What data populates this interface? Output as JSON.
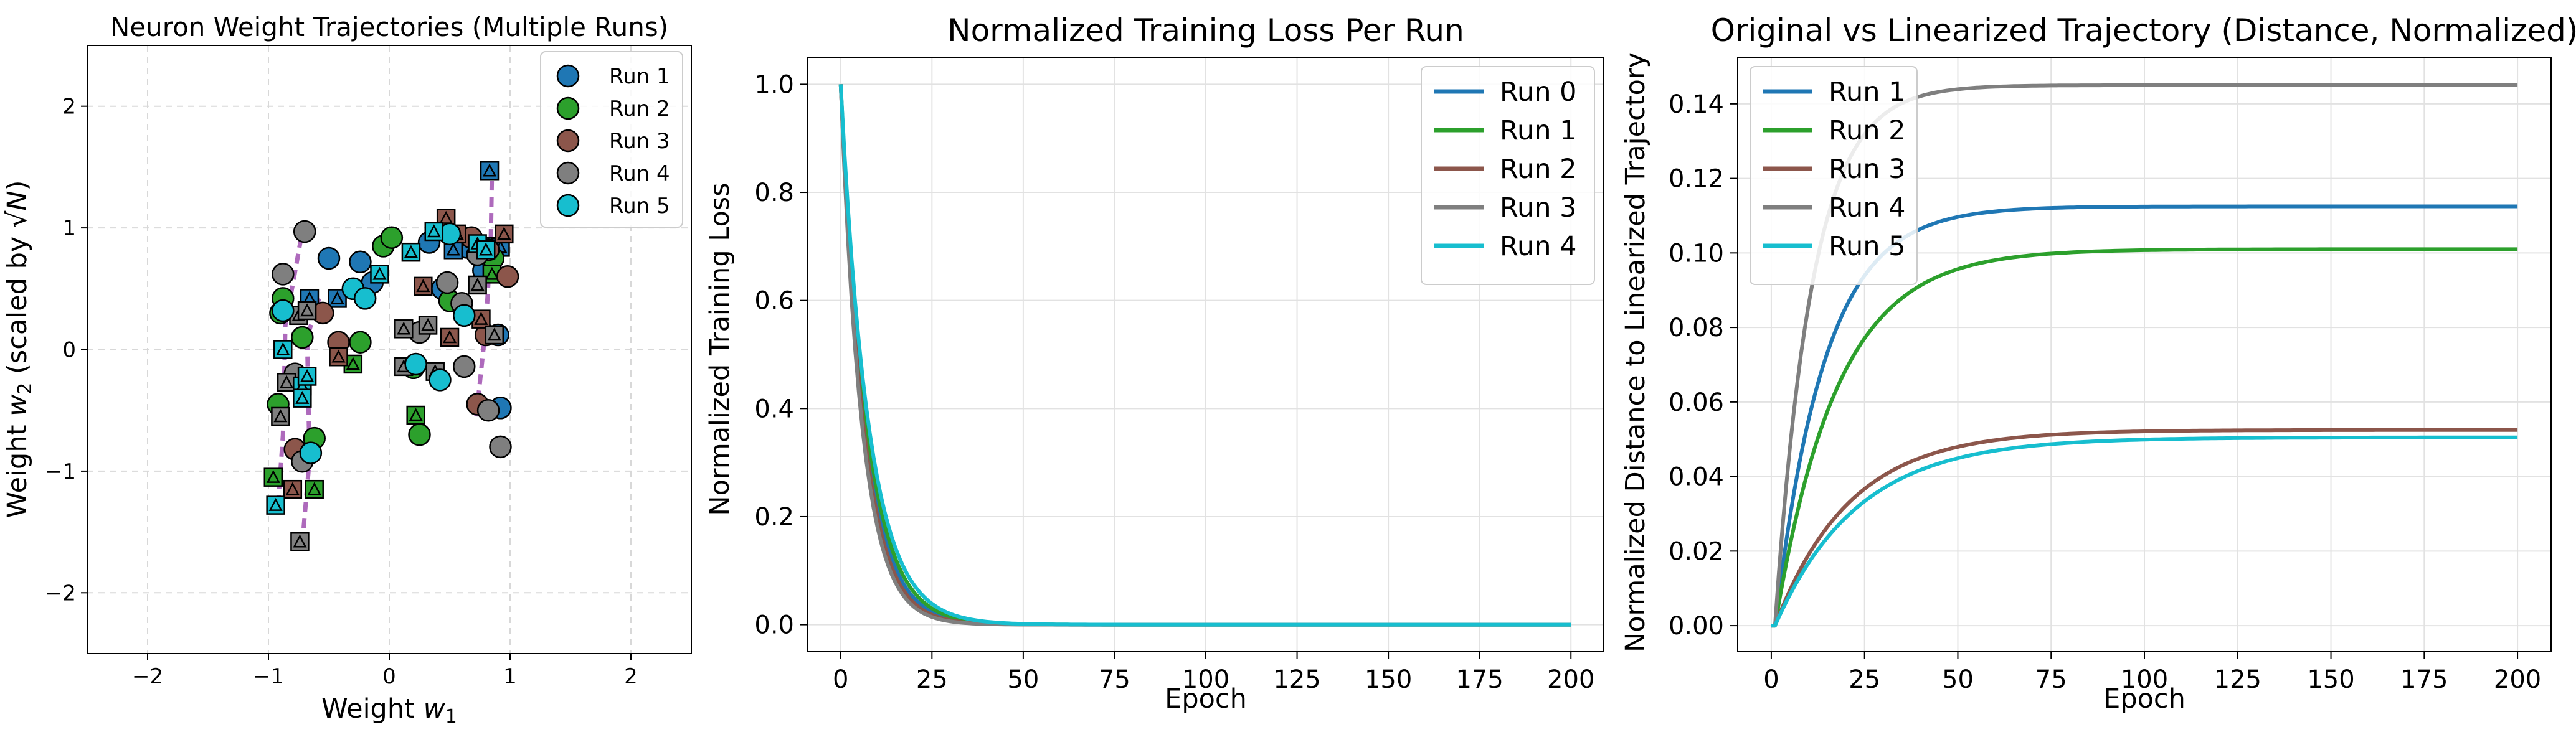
{
  "chart_data": [
    {
      "type": "scatter",
      "title": "Neuron Weight Trajectories (Multiple Runs)",
      "xlabel": "Weight w_1",
      "ylabel": "Weight w_2 (scaled by √N)",
      "xlim": [
        -2.5,
        2.5
      ],
      "ylim": [
        -2.5,
        2.5
      ],
      "xticks": [
        "−2",
        "−1",
        "0",
        "1",
        "2"
      ],
      "yticks": [
        "−2",
        "−1",
        "0",
        "1",
        "2"
      ],
      "grid": true,
      "legend_position": "top-right",
      "trajectory_color": "#a050b0",
      "series": [
        {
          "name": "Run 1",
          "color": "#1f77b4",
          "points": [
            [
              -0.5,
              0.75
            ],
            [
              -0.24,
              0.72
            ],
            [
              -0.14,
              0.55
            ],
            [
              0.33,
              0.88
            ],
            [
              0.64,
              0.84
            ],
            [
              0.78,
              0.65
            ],
            [
              0.9,
              0.12
            ],
            [
              0.92,
              -0.48
            ],
            [
              0.44,
              0.5
            ]
          ],
          "triangles": [
            [
              0.83,
              1.47
            ],
            [
              0.85,
              0.85
            ],
            [
              0.92,
              0.84
            ],
            [
              0.53,
              0.82
            ],
            [
              -0.66,
              0.42
            ],
            [
              -0.43,
              0.42
            ]
          ]
        },
        {
          "name": "Run 2",
          "color": "#2ca02c",
          "points": [
            [
              -0.92,
              -0.45
            ],
            [
              -0.9,
              0.3
            ],
            [
              -0.88,
              0.42
            ],
            [
              -0.72,
              0.1
            ],
            [
              -0.62,
              -0.73
            ],
            [
              -0.24,
              0.06
            ],
            [
              -0.05,
              0.85
            ],
            [
              0.02,
              0.92
            ],
            [
              0.2,
              -0.15
            ],
            [
              0.25,
              -0.7
            ],
            [
              0.5,
              0.4
            ],
            [
              0.86,
              0.75
            ]
          ],
          "triangles": [
            [
              -0.96,
              -1.05
            ],
            [
              -0.62,
              -1.15
            ],
            [
              -0.3,
              -0.12
            ],
            [
              0.85,
              0.62
            ],
            [
              0.22,
              -0.54
            ]
          ]
        },
        {
          "name": "Run 3",
          "color": "#8c564b",
          "points": [
            [
              -0.42,
              0.06
            ],
            [
              -0.78,
              -0.82
            ],
            [
              0.68,
              0.92
            ],
            [
              0.8,
              0.12
            ],
            [
              0.73,
              -0.45
            ],
            [
              0.82,
              0.82
            ],
            [
              0.98,
              0.6
            ],
            [
              -0.55,
              0.3
            ]
          ],
          "triangles": [
            [
              0.47,
              1.08
            ],
            [
              0.95,
              0.95
            ],
            [
              0.56,
              0.95
            ],
            [
              -0.42,
              -0.06
            ],
            [
              0.28,
              0.52
            ],
            [
              -0.8,
              -1.15
            ],
            [
              0.76,
              0.25
            ],
            [
              0.5,
              0.1
            ]
          ]
        },
        {
          "name": "Run 4",
          "color": "#7f7f7f",
          "points": [
            [
              -0.7,
              0.97
            ],
            [
              -0.88,
              0.62
            ],
            [
              -0.78,
              -0.2
            ],
            [
              -0.72,
              -0.92
            ],
            [
              0.25,
              0.14
            ],
            [
              0.48,
              0.55
            ],
            [
              0.6,
              0.38
            ],
            [
              0.73,
              0.78
            ],
            [
              0.82,
              -0.5
            ],
            [
              0.92,
              -0.8
            ],
            [
              0.62,
              -0.14
            ]
          ],
          "triangles": [
            [
              -0.74,
              -1.58
            ],
            [
              -0.9,
              -0.55
            ],
            [
              -0.85,
              -0.27
            ],
            [
              -0.75,
              0.28
            ],
            [
              -0.68,
              0.32
            ],
            [
              0.12,
              0.17
            ],
            [
              0.32,
              0.2
            ],
            [
              0.73,
              0.53
            ],
            [
              0.87,
              0.12
            ],
            [
              0.12,
              -0.14
            ],
            [
              0.38,
              -0.18
            ]
          ]
        },
        {
          "name": "Run 5",
          "color": "#17becf",
          "points": [
            [
              -0.88,
              0.32
            ],
            [
              -0.65,
              -0.85
            ],
            [
              -0.3,
              0.5
            ],
            [
              -0.2,
              0.42
            ],
            [
              0.22,
              -0.12
            ],
            [
              0.42,
              -0.25
            ],
            [
              0.62,
              0.28
            ],
            [
              0.5,
              0.95
            ]
          ],
          "triangles": [
            [
              -0.94,
              -1.28
            ],
            [
              -0.88,
              0.0
            ],
            [
              -0.72,
              -0.3
            ],
            [
              -0.68,
              -0.22
            ],
            [
              -0.72,
              -0.4
            ],
            [
              -0.08,
              0.62
            ],
            [
              0.18,
              0.8
            ],
            [
              0.37,
              0.97
            ],
            [
              0.73,
              0.87
            ],
            [
              0.8,
              0.82
            ]
          ]
        }
      ],
      "trajectories": [
        [
          [
            -0.92,
            -1.28
          ],
          [
            -0.88,
            -0.7
          ],
          [
            -0.86,
            0.2
          ],
          [
            -0.72,
            0.97
          ]
        ],
        [
          [
            -0.72,
            -1.6
          ],
          [
            -0.66,
            -0.9
          ],
          [
            -0.68,
            0.1
          ],
          [
            -0.58,
            0.42
          ]
        ],
        [
          [
            0.72,
            -0.55
          ],
          [
            0.8,
            0.2
          ],
          [
            0.84,
            0.9
          ],
          [
            0.85,
            1.47
          ]
        ]
      ],
      "legend": [
        "Run 1",
        "Run 2",
        "Run 3",
        "Run 4",
        "Run 5"
      ]
    },
    {
      "type": "line",
      "title": "Normalized Training Loss Per Run",
      "xlabel": "Epoch",
      "ylabel": "Normalized Training Loss",
      "xlim": [
        -9,
        209
      ],
      "ylim": [
        -0.05,
        1.05
      ],
      "xticks": [
        0,
        25,
        50,
        75,
        100,
        125,
        150,
        175,
        200
      ],
      "yticks": [
        "0.0",
        "0.2",
        "0.4",
        "0.6",
        "0.8",
        "1.0"
      ],
      "grid": true,
      "legend_position": "top-right",
      "epochs": 200,
      "series": [
        {
          "name": "Run 0",
          "color": "#1f77b4",
          "decay_rate": 0.15
        },
        {
          "name": "Run 1",
          "color": "#2ca02c",
          "decay_rate": 0.14
        },
        {
          "name": "Run 2",
          "color": "#8c564b",
          "decay_rate": 0.16
        },
        {
          "name": "Run 3",
          "color": "#7f7f7f",
          "decay_rate": 0.17
        },
        {
          "name": "Run 4",
          "color": "#17becf",
          "decay_rate": 0.13
        }
      ],
      "legend": [
        "Run 0",
        "Run 1",
        "Run 2",
        "Run 3",
        "Run 4"
      ]
    },
    {
      "type": "line",
      "title": "Original vs Linearized Trajectory (Distance, Normalized)",
      "xlabel": "Epoch",
      "ylabel": "Normalized Distance to Linearized Trajectory",
      "xlim": [
        -9,
        209
      ],
      "ylim": [
        -0.007,
        0.1525
      ],
      "xticks": [
        0,
        25,
        50,
        75,
        100,
        125,
        150,
        175,
        200
      ],
      "yticks": [
        "0.00",
        "0.02",
        "0.04",
        "0.06",
        "0.08",
        "0.10",
        "0.12",
        "0.14"
      ],
      "grid": true,
      "legend_position": "top-left",
      "epochs": 200,
      "series": [
        {
          "name": "Run 1",
          "color": "#1f77b4",
          "plateau": 0.1125,
          "rate": 0.075
        },
        {
          "name": "Run 2",
          "color": "#2ca02c",
          "plateau": 0.101,
          "rate": 0.06
        },
        {
          "name": "Run 3",
          "color": "#8c564b",
          "plateau": 0.0525,
          "rate": 0.05
        },
        {
          "name": "Run 4",
          "color": "#7f7f7f",
          "plateau": 0.145,
          "rate": 0.1
        },
        {
          "name": "Run 5",
          "color": "#17becf",
          "plateau": 0.0505,
          "rate": 0.045
        }
      ],
      "legend": [
        "Run 1",
        "Run 2",
        "Run 3",
        "Run 4",
        "Run 5"
      ]
    }
  ]
}
